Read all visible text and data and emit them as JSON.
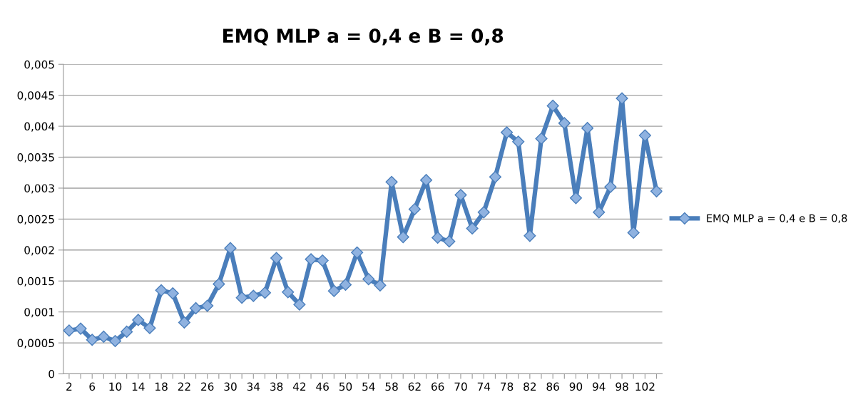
{
  "chart_data": {
    "type": "line",
    "title": "EMQ MLP a = 0,4 e B = 0,8",
    "categories": [
      "2",
      null,
      "6",
      null,
      "10",
      null,
      "14",
      null,
      "18",
      null,
      "22",
      null,
      "26",
      null,
      "30",
      null,
      "34",
      null,
      "38",
      null,
      "42",
      null,
      "46",
      null,
      "50",
      null,
      "54",
      null,
      "58",
      null,
      "62",
      null,
      "66",
      null,
      "70",
      null,
      "74",
      null,
      "78",
      null,
      "82",
      null,
      "86",
      null,
      "90",
      null,
      "94",
      null,
      "98",
      null,
      "102",
      null
    ],
    "series": [
      {
        "name": "EMQ MLP a = 0,4 e B = 0,8",
        "color": "#4a7ebb",
        "values": [
          0.0007,
          0.00073,
          0.00055,
          0.0006,
          0.00053,
          0.00068,
          0.00087,
          0.00074,
          0.00135,
          0.0013,
          0.00083,
          0.00106,
          0.0011,
          0.00145,
          0.00203,
          0.00123,
          0.00126,
          0.00131,
          0.00187,
          0.00132,
          0.00112,
          0.00185,
          0.00183,
          0.00134,
          0.00144,
          0.00196,
          0.00153,
          0.00143,
          0.0031,
          0.00221,
          0.00266,
          0.00313,
          0.0022,
          0.00214,
          0.00289,
          0.00235,
          0.00261,
          0.00318,
          0.0039,
          0.00375,
          0.00223,
          0.0038,
          0.00433,
          0.00405,
          0.00284,
          0.00397,
          0.00261,
          0.00302,
          0.00445,
          0.00228,
          0.00385,
          0.00295
        ]
      }
    ],
    "ylim": [
      0,
      0.005
    ],
    "yticks": [
      0,
      {
        "value": 0.0005,
        "label": "0,0005"
      },
      {
        "value": 0.001,
        "label": "0,001"
      },
      {
        "value": 0.0015,
        "label": "0,0015"
      },
      {
        "value": 0.002,
        "label": "0,002"
      },
      {
        "value": 0.0025,
        "label": "0,0025"
      },
      {
        "value": 0.003,
        "label": "0,003"
      },
      {
        "value": 0.0035,
        "label": "0,0035"
      },
      {
        "value": 0.004,
        "label": "0,004"
      },
      {
        "value": 0.0045,
        "label": "0,0045"
      },
      {
        "value": 0.005,
        "label": "0,005"
      }
    ],
    "grid": "y",
    "legend": "right",
    "marker": "diamond",
    "line_style": "solid"
  }
}
